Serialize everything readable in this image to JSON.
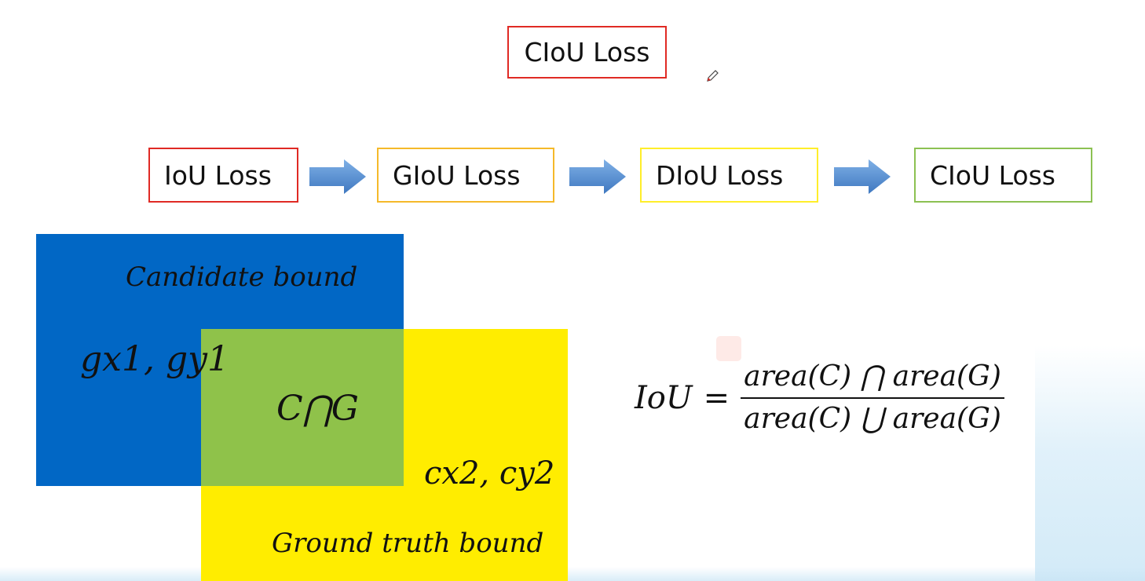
{
  "title": "CIoU Loss",
  "steps": [
    {
      "label": "IoU Loss",
      "color": "#e02a24"
    },
    {
      "label": "GIoU Loss",
      "color": "#f5b92a"
    },
    {
      "label": "DIoU Loss",
      "color": "#ffee2a"
    },
    {
      "label": "CIoU Loss",
      "color": "#8cc152"
    }
  ],
  "arrow_color": "#4a86c8",
  "diagram": {
    "candidate_label": "Candidate bound",
    "candidate_corner": "gx1, gy1",
    "intersection_label": "C⋂G",
    "ground_corner": "cx2, cy2",
    "ground_label": "Ground truth bound",
    "candidate_color": "#0167c5",
    "ground_color": "#ffed00",
    "intersection_color": "#8fc24a"
  },
  "formula": {
    "lhs": "IoU",
    "eq": "=",
    "numerator": "area(C) ⋂ area(G)",
    "denominator": "area(C) ⋃ area(G)"
  }
}
